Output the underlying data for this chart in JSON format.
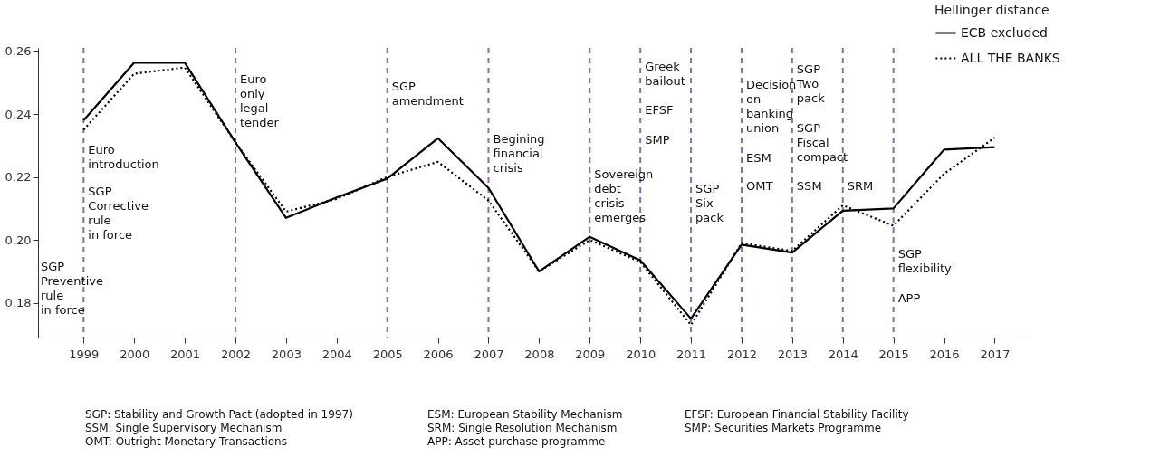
{
  "chart_data": {
    "type": "line",
    "legend_title": "Hellinger distance",
    "legend": "top right",
    "grid": false,
    "marker": "none",
    "x": [
      1999,
      2000,
      2001,
      2002,
      2003,
      2004,
      2005,
      2006,
      2007,
      2008,
      2009,
      2010,
      2011,
      2012,
      2013,
      2014,
      2015,
      2016,
      2017
    ],
    "series": [
      {
        "name": "ECB excluded",
        "color": "#000000",
        "line_style": "solid",
        "values": [
          0.238,
          0.2563,
          0.2563,
          0.231,
          0.207,
          0.2135,
          0.2195,
          0.2323,
          0.2165,
          0.19,
          0.201,
          0.1935,
          0.175,
          0.1985,
          0.196,
          0.2093,
          0.21,
          0.2287,
          0.2295
        ]
      },
      {
        "name": "ALL THE BANKS",
        "color": "#000000",
        "line_style": "dotted",
        "values": [
          0.235,
          0.2528,
          0.2548,
          0.231,
          0.209,
          0.213,
          0.22,
          0.2248,
          0.2125,
          0.19,
          0.2,
          0.193,
          0.173,
          0.199,
          0.1965,
          0.211,
          0.2045,
          0.221,
          0.2325
        ]
      }
    ],
    "xlim": [
      1998.1,
      2017.6
    ],
    "xticks": [
      1999,
      2000,
      2001,
      2002,
      2003,
      2004,
      2005,
      2006,
      2007,
      2008,
      2009,
      2010,
      2011,
      2012,
      2013,
      2014,
      2015,
      2016,
      2017
    ],
    "ylim": [
      0.169,
      0.261
    ],
    "yticks": [
      {
        "value": 0.18,
        "label": "0.18"
      },
      {
        "value": 0.2,
        "label": "0.20"
      },
      {
        "value": 0.22,
        "label": "0.22"
      },
      {
        "value": 0.24,
        "label": "0.24"
      },
      {
        "value": 0.26,
        "label": "0.26"
      }
    ],
    "ref_lines": [
      {
        "axis": "x",
        "value": 1999,
        "color": "#8e6bab",
        "line_style": "dashed"
      },
      {
        "axis": "x",
        "value": 2002,
        "color": "#8e6bab",
        "line_style": "dashed"
      },
      {
        "axis": "x",
        "value": 2005,
        "color": "#8e6bab",
        "line_style": "dashed"
      },
      {
        "axis": "x",
        "value": 2007,
        "color": "#8e6bab",
        "line_style": "dashed"
      },
      {
        "axis": "x",
        "value": 2009,
        "color": "#8e6bab",
        "line_style": "dashed"
      },
      {
        "axis": "x",
        "value": 2010,
        "color": "#8e6bab",
        "line_style": "dashed"
      },
      {
        "axis": "x",
        "value": 2011,
        "color": "#8e6bab",
        "line_style": "dashed"
      },
      {
        "axis": "x",
        "value": 2012,
        "color": "#8e6bab",
        "line_style": "dashed"
      },
      {
        "axis": "x",
        "value": 2013,
        "color": "#8e6bab",
        "line_style": "dashed"
      },
      {
        "axis": "x",
        "value": 2014,
        "color": "#8e6bab",
        "line_style": "dashed"
      },
      {
        "axis": "x",
        "value": 2015,
        "color": "#8e6bab",
        "line_style": "dashed"
      }
    ],
    "annotations": [
      "SGP\nPreventive\nrule\nin force",
      {
        "text": "Euro\nintroduction",
        "x": 1999,
        "y": 0.2303
      },
      {
        "text": "SGP\nCorrective\nrule\nin force",
        "x": 1999,
        "y": 0.2169
      },
      {
        "text": "Euro\nonly\nlegal\ntender",
        "x": 2002,
        "y": 0.2526
      },
      {
        "text": "SGP\namendment",
        "x": 2005,
        "y": 0.2503
      },
      {
        "text": "Begining\nfinancial\ncrisis",
        "x": 2007,
        "y": 0.2337
      },
      {
        "text": "Sovereign\ndebt\ncrisis\nemerges",
        "x": 2009,
        "y": 0.2226
      },
      {
        "text": "Greek\nbailout",
        "x": 2010,
        "y": 0.2566
      },
      {
        "text": "EFSF",
        "x": 2010,
        "y": 0.2429
      },
      {
        "text": "SMP",
        "x": 2010,
        "y": 0.2334
      },
      {
        "text": "SGP\nSix\npack",
        "x": 2011,
        "y": 0.218
      },
      {
        "text": "Decision\non\nbanking\nunion",
        "x": 2012,
        "y": 0.2509
      },
      {
        "text": "ESM",
        "x": 2012,
        "y": 0.2277
      },
      {
        "text": "OMT",
        "x": 2012,
        "y": 0.2186
      },
      {
        "text": "SGP\nTwo\npack",
        "x": 2013,
        "y": 0.2557
      },
      {
        "text": "SGP\nFiscal\ncompact",
        "x": 2013,
        "y": 0.2371
      },
      {
        "text": "SSM",
        "x": 2013,
        "y": 0.2186
      },
      {
        "text": "SRM",
        "x": 2014,
        "y": 0.2186
      },
      {
        "text": "SGP\nflexibility",
        "x": 2015,
        "y": 0.1971
      },
      {
        "text": "APP",
        "x": 2015,
        "y": 0.1831
      },
      "SGP: Stability and Growth Pact (adopted in 1997)",
      "ESM: European Stability Mechanism",
      "EFSF: European Financial Stability Facility",
      "SSM: Single Supervisory Mechanism",
      "SRM: Single Resolution Mechanism",
      "SMP: Securities Markets Programme",
      "OMT: Outright Monetary Transactions",
      "APP: Asset purchase programme"
    ]
  }
}
